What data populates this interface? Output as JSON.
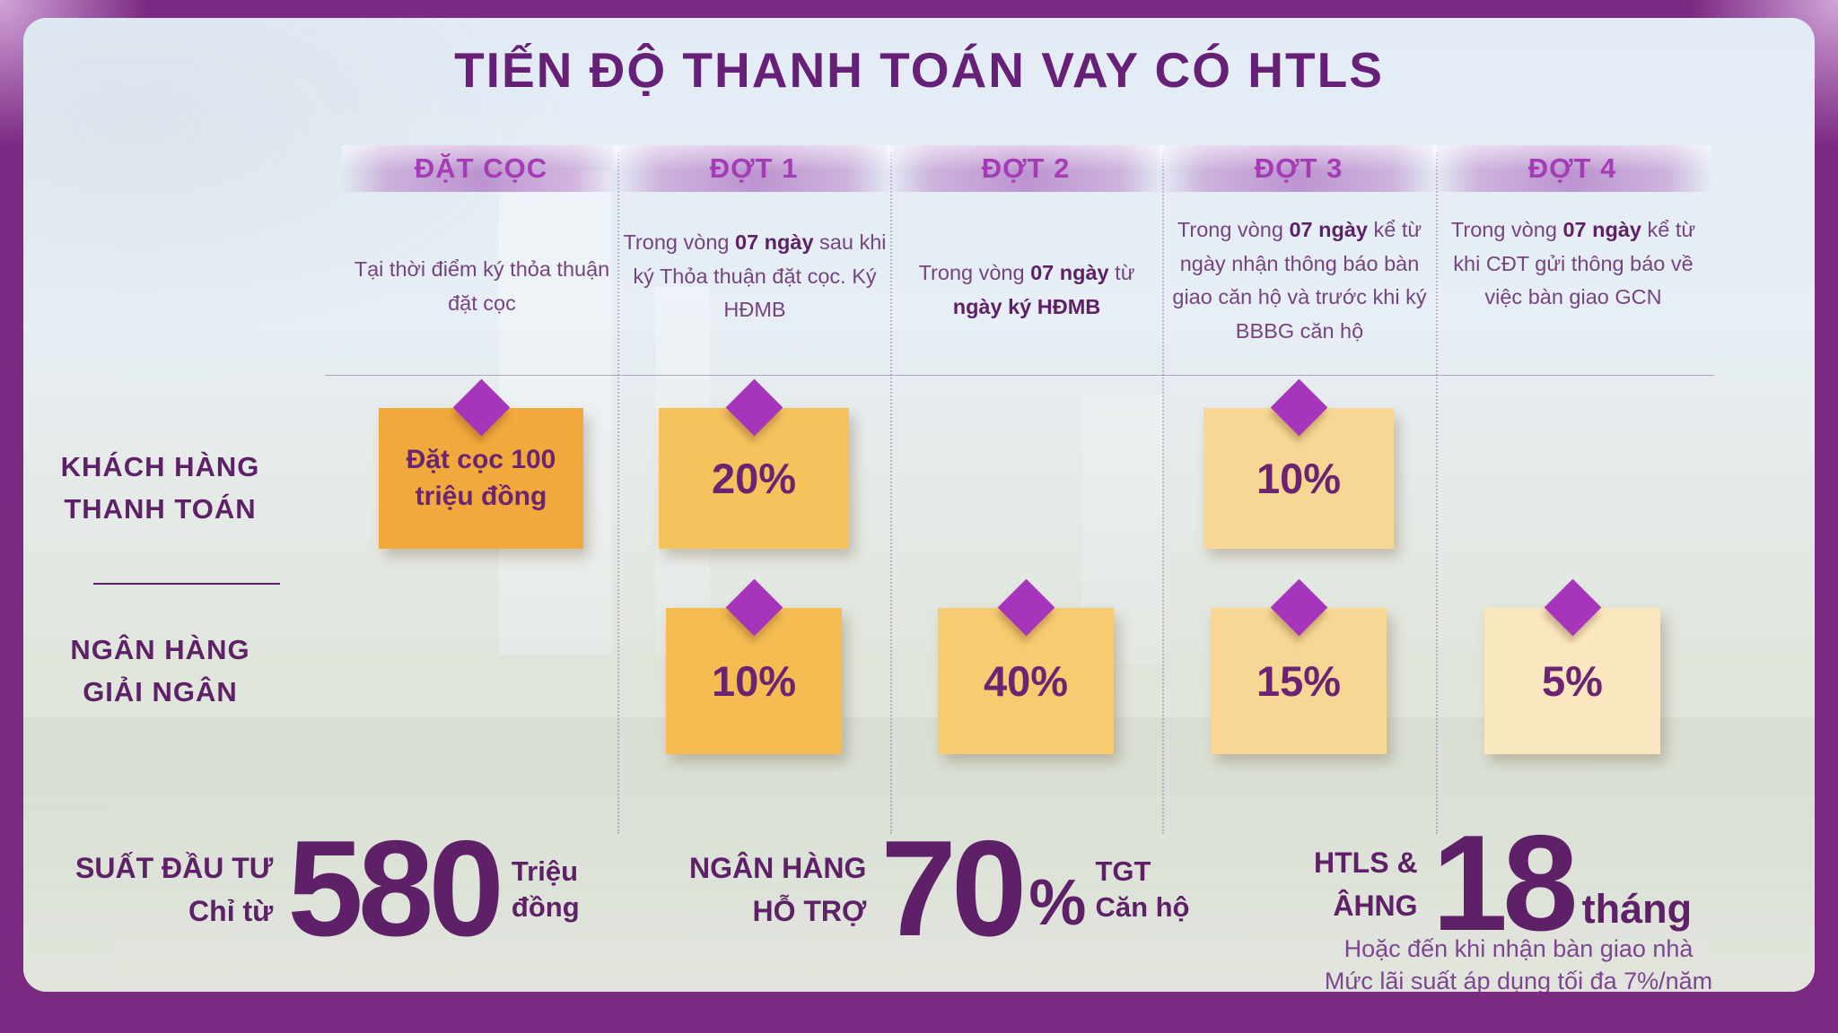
{
  "title": "TIẾN ĐỘ THANH TOÁN VAY CÓ HTLS",
  "columns": [
    {
      "header": "ĐẶT CỌC",
      "desc": [
        {
          "text": "Tại thời điểm ký thỏa thuận đặt cọc",
          "bold": false
        }
      ]
    },
    {
      "header": "ĐỢT 1",
      "desc": [
        {
          "text": "Trong vòng ",
          "bold": false
        },
        {
          "text": "07 ngày",
          "bold": true
        },
        {
          "text": " sau khi ký Thỏa thuận đặt cọc. Ký HĐMB",
          "bold": false
        }
      ]
    },
    {
      "header": "ĐỢT 2",
      "desc": [
        {
          "text": "Trong vòng ",
          "bold": false
        },
        {
          "text": "07 ngày",
          "bold": true
        },
        {
          "text": " từ ",
          "bold": false
        },
        {
          "text": "ngày ký HĐMB",
          "bold": true
        }
      ]
    },
    {
      "header": "ĐỢT 3",
      "desc": [
        {
          "text": "Trong vòng ",
          "bold": false
        },
        {
          "text": "07 ngày",
          "bold": true
        },
        {
          "text": " kể từ ngày nhận thông báo bàn giao căn hộ và trước khi ký BBBG căn hộ",
          "bold": false
        }
      ]
    },
    {
      "header": "ĐỢT 4",
      "desc": [
        {
          "text": "Trong vòng ",
          "bold": false
        },
        {
          "text": "07 ngày",
          "bold": true
        },
        {
          "text": " kể từ khi CĐT gửi thông báo về việc bàn giao GCN",
          "bold": false
        }
      ]
    }
  ],
  "row_labels": [
    {
      "lines": [
        "KHÁCH HÀNG",
        "THANH TOÁN"
      ]
    },
    {
      "lines": [
        "NGÂN HÀNG",
        "GIẢI NGÂN"
      ]
    }
  ],
  "payment_boxes": {
    "customer": [
      {
        "column": "ĐẶT CỌC",
        "label": "Đặt cọc 100 triệu đồng",
        "color": "#F2A93B"
      },
      {
        "column": "ĐỢT 1",
        "label": "20%",
        "color": "#F6C25C"
      },
      {
        "column": "ĐỢT 3",
        "label": "10%",
        "color": "#F8D794"
      }
    ],
    "bank": [
      {
        "column": "ĐỢT 1",
        "label": "10%",
        "color": "#F5BC52"
      },
      {
        "column": "ĐỢT 2",
        "label": "40%",
        "color": "#F7CB70"
      },
      {
        "column": "ĐỢT 3",
        "label": "15%",
        "color": "#F8D795"
      },
      {
        "column": "ĐỢT 4",
        "label": "5%",
        "color": "#FAE7C0"
      }
    ]
  },
  "stats": [
    {
      "label_lines": [
        "SUẤT ĐẦU TƯ",
        "Chỉ từ"
      ],
      "value": "580",
      "unit_lines": [
        "Triệu",
        "đồng"
      ]
    },
    {
      "label_lines": [
        "NGÂN HÀNG",
        "HỖ TRỢ"
      ],
      "value": "70",
      "percent_sign": "%",
      "unit_lines": [
        "TGT",
        "Căn hộ"
      ]
    },
    {
      "label_lines": [
        "HTLS &",
        "ÂHNG"
      ],
      "value": "18",
      "unit": "tháng"
    }
  ],
  "footnote_lines": [
    "Hoặc đến khi nhận bàn giao nhà",
    "Mức lãi suất áp dụng tối đa 7%/năm"
  ],
  "colors": {
    "frame": "#7B2A82",
    "title": "#662077",
    "header_text": "#A63CB5",
    "diamond": "#A635BC",
    "stat_text": "#5E2167",
    "note_text": "#7D4690"
  }
}
